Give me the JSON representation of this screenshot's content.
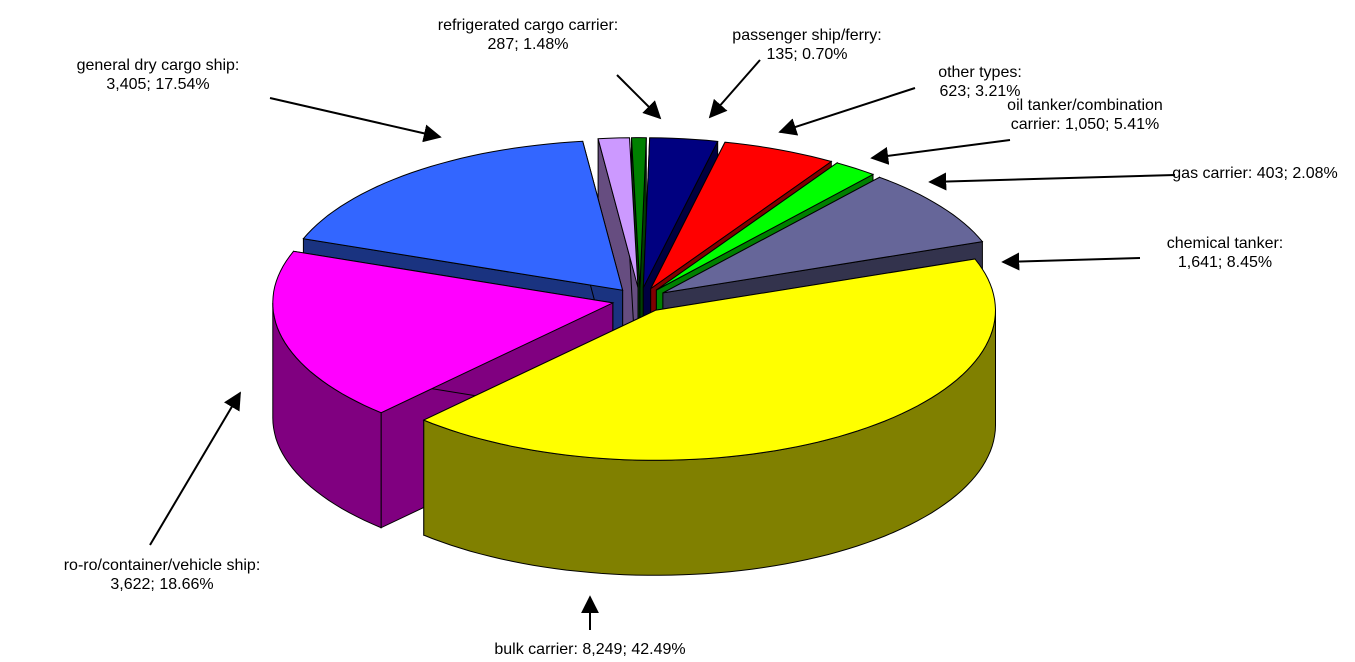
{
  "chart_data": {
    "type": "pie3d",
    "categories": [
      "bulk carrier:",
      "ro-ro/container/vehicle ship:",
      "general dry cargo ship:",
      "refrigerated cargo carrier:",
      "passenger ship/ferry:",
      "other types:",
      "oil tanker/combination carrier:",
      "gas carrier:",
      "chemical tanker:"
    ],
    "values": [
      8249,
      3622,
      3405,
      287,
      135,
      623,
      1050,
      403,
      1641
    ],
    "value_labels": [
      "8,249; 42.49%",
      "3,622; 18.66%",
      "3,405; 17.54%",
      "287; 1.48%",
      "135; 0.70%",
      "623; 3.21%",
      "1,050; 5.41%",
      "403; 2.08%",
      "1,641; 8.45%"
    ],
    "colors": [
      "#ffff00",
      "#ff00ff",
      "#3366ff",
      "#cc99ff",
      "#008000",
      "#000080",
      "#ff0000",
      "#00ff00",
      "#666699"
    ]
  }
}
